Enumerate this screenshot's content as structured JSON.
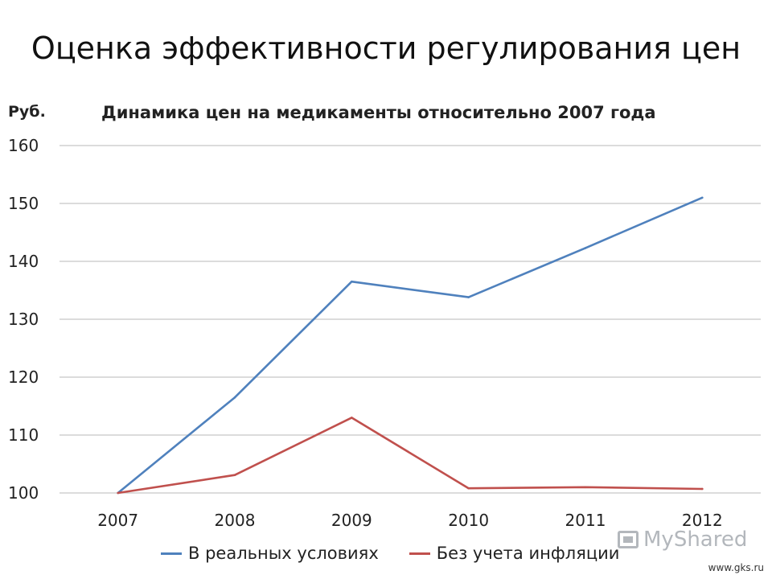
{
  "slide": {
    "title": "Оценка эффективности регулирования цен",
    "unit_label": "Руб.",
    "watermark": "MyShared",
    "source": "www.gks.ru"
  },
  "chart_data": {
    "type": "line",
    "title": "Динамика цен на медикаменты относительно 2007 года",
    "ylabel": "Руб.",
    "xlabel": "",
    "categories": [
      "2007",
      "2008",
      "2009",
      "2010",
      "2011",
      "2012"
    ],
    "ylim": [
      100,
      160
    ],
    "yticks": [
      100,
      110,
      120,
      130,
      140,
      150,
      160
    ],
    "grid": true,
    "legend_position": "bottom",
    "series": [
      {
        "name": "В реальных условиях",
        "color": "#4f81bd",
        "values": [
          100,
          116.5,
          136.5,
          133.8,
          142.3,
          151.0
        ]
      },
      {
        "name": "Без учета инфляции",
        "color": "#c0504d",
        "values": [
          100,
          103.1,
          113.0,
          100.8,
          101.0,
          100.7
        ]
      }
    ]
  }
}
